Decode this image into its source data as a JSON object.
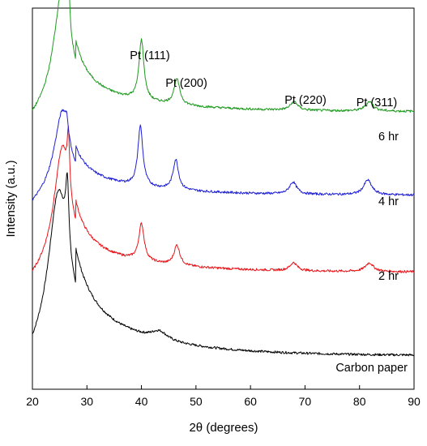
{
  "chart_data": {
    "type": "line",
    "title": "",
    "xlabel": "2θ (degrees)",
    "ylabel": "Intensity (a.u.)",
    "xlim": [
      20,
      90
    ],
    "x_ticks": [
      20,
      30,
      40,
      50,
      60,
      70,
      80,
      90
    ],
    "y_scale": "arbitrary units, stacked traces with vertical offset",
    "grid": false,
    "legend": "none; traces labeled inline at right",
    "peak_labels": [
      "Pt (111)",
      "Pt (200)",
      "Pt (220)",
      "Pt (311)"
    ],
    "series": [
      {
        "name": "Carbon paper",
        "color": "#000000",
        "baseline": 0.0,
        "peaks": [
          [
            24.8,
            20.5,
            2.2
          ],
          [
            26.4,
            10,
            0.35
          ],
          [
            26.0,
            4,
            5.5
          ],
          [
            43.3,
            1.3,
            1.8
          ]
        ],
        "noise": 0.35,
        "tail": 5.5
      },
      {
        "name": "2 hr",
        "color": "#e8141a",
        "baseline": 12.5,
        "peaks": [
          [
            25.5,
            15.5,
            1.7
          ],
          [
            26.6,
            8,
            0.25
          ],
          [
            26.0,
            3,
            4.5
          ],
          [
            40.0,
            5.5,
            0.6
          ],
          [
            46.5,
            3,
            0.65
          ],
          [
            67.9,
            1.2,
            0.8
          ],
          [
            81.8,
            1.3,
            0.9
          ]
        ],
        "noise": 0.35,
        "tail": 3.0
      },
      {
        "name": "4 hr",
        "color": "#1f1fd6",
        "baseline": 24.0,
        "peaks": [
          [
            25.5,
            10.5,
            1.6
          ],
          [
            26.3,
            2,
            0.3
          ],
          [
            26.0,
            2,
            4.5
          ],
          [
            39.8,
            9,
            0.55
          ],
          [
            46.3,
            4.5,
            0.6
          ],
          [
            67.8,
            1.8,
            0.8
          ],
          [
            81.5,
            2.2,
            0.9
          ]
        ],
        "noise": 0.35,
        "tail": 2.5
      },
      {
        "name": "6 hr",
        "color": "#1e9a1e",
        "baseline": 36.5,
        "peaks": [
          [
            25.5,
            15.5,
            1.7
          ],
          [
            26.6,
            10,
            0.2
          ],
          [
            26.0,
            3,
            4.5
          ],
          [
            40.0,
            9,
            0.55
          ],
          [
            46.5,
            3.8,
            0.65
          ],
          [
            68.0,
            1.3,
            0.8
          ],
          [
            81.8,
            1.4,
            0.9
          ]
        ],
        "noise": 0.35,
        "tail": 3.0
      }
    ]
  }
}
